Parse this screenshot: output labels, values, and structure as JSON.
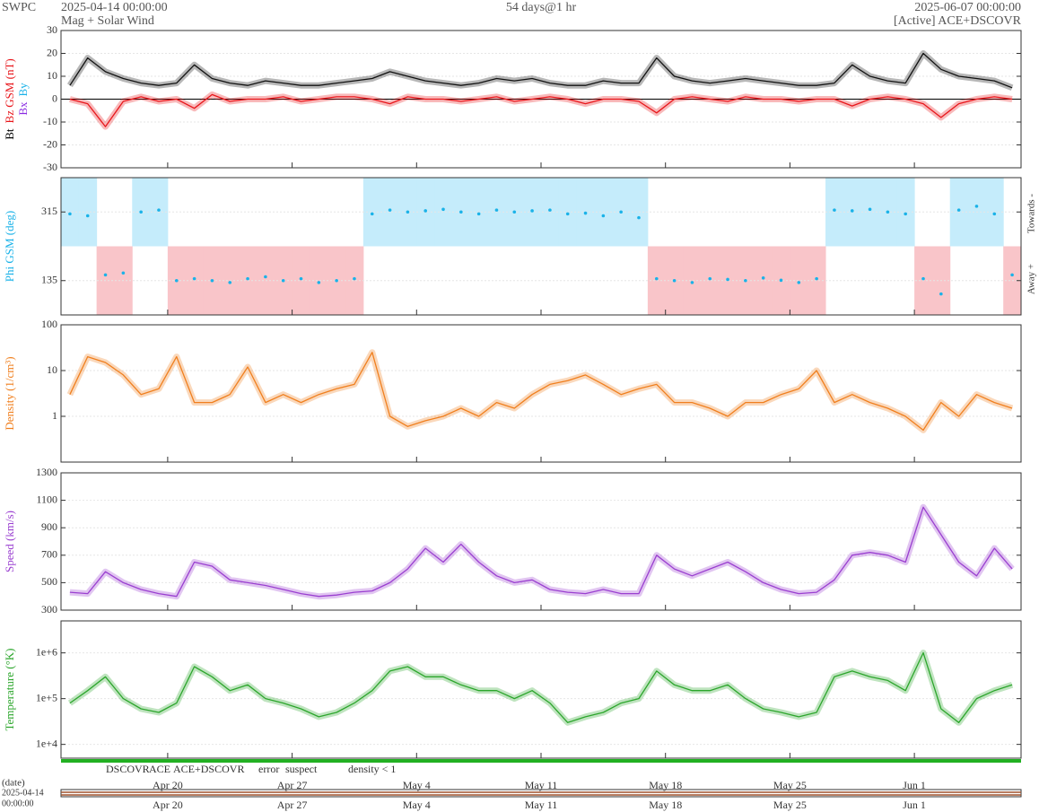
{
  "header": {
    "source": "SWPC",
    "start": "2025-04-14 00:00:00",
    "subtitle": "Mag + Solar Wind",
    "span": "54 days@1 hr",
    "end": "2025-06-07 00:00:00",
    "status": "[Active] ACE+DSCOVR"
  },
  "x_axis": {
    "categories": [
      null,
      null,
      null,
      null,
      null,
      null,
      "Apr 20",
      null,
      null,
      null,
      null,
      null,
      null,
      "Apr 27",
      null,
      null,
      null,
      null,
      null,
      null,
      "May 4",
      null,
      null,
      null,
      null,
      null,
      null,
      "May 11",
      null,
      null,
      null,
      null,
      null,
      null,
      "May 18",
      null,
      null,
      null,
      null,
      null,
      null,
      "May 25",
      null,
      null,
      null,
      null,
      null,
      null,
      "Jun 1",
      null,
      null,
      null,
      null,
      null
    ],
    "date_label": "(date)",
    "date_start": "2025-04-14",
    "time_start": "00:00:00"
  },
  "chart_data": [
    {
      "type": "line",
      "ylabel": [
        {
          "text": "Bt",
          "color": "#000000"
        },
        {
          "text": "Bz GSM (nT)",
          "color": "#e8161b"
        }
      ],
      "ylabel2": [
        {
          "text": "Bx",
          "color": "#8a2be2"
        },
        {
          "text": "By",
          "color": "#1ab2e8"
        }
      ],
      "ylim": [
        -30,
        30
      ],
      "yticks": [
        -30,
        -20,
        -10,
        0,
        10,
        20,
        30
      ],
      "log": false,
      "series": [
        {
          "color": "#111111",
          "values": [
            6,
            18,
            12,
            9,
            7,
            6,
            7,
            15,
            9,
            7,
            6,
            8,
            7,
            6,
            6,
            7,
            8,
            9,
            12,
            10,
            8,
            7,
            6,
            7,
            9,
            8,
            9,
            7,
            6,
            6,
            8,
            7,
            7,
            18,
            10,
            8,
            7,
            8,
            9,
            8,
            7,
            6,
            6,
            7,
            15,
            10,
            8,
            7,
            20,
            13,
            10,
            9,
            8,
            5
          ]
        },
        {
          "color": "#e8161b",
          "values": [
            0,
            -2,
            -12,
            -1,
            1,
            -1,
            0,
            -4,
            2,
            -1,
            0,
            0,
            1,
            -1,
            0,
            1,
            1,
            0,
            -2,
            1,
            0,
            0,
            -1,
            0,
            1,
            -1,
            0,
            1,
            0,
            -2,
            0,
            0,
            -1,
            -6,
            0,
            1,
            0,
            -1,
            1,
            0,
            0,
            -1,
            0,
            0,
            -3,
            0,
            1,
            0,
            -2,
            -8,
            -2,
            0,
            1,
            0
          ]
        }
      ]
    },
    {
      "type": "scatter",
      "ylabel": [
        {
          "text": "Phi GSM (deg)",
          "color": "#1ab2e8"
        }
      ],
      "right_labels": [
        "Towards -",
        "Away +"
      ],
      "sector_colors": [
        "#c5ecfb",
        "#f9c5c9"
      ],
      "ylim": [
        45,
        405
      ],
      "yticks": [
        135,
        315
      ],
      "log": false,
      "series": [
        {
          "color": "#1ab2e8",
          "values": [
            310,
            305,
            150,
            155,
            315,
            320,
            135,
            140,
            135,
            130,
            140,
            145,
            135,
            140,
            130,
            135,
            140,
            310,
            320,
            315,
            318,
            322,
            315,
            310,
            320,
            315,
            318,
            320,
            310,
            312,
            305,
            315,
            300,
            140,
            135,
            130,
            140,
            138,
            135,
            142,
            136,
            130,
            140,
            320,
            318,
            322,
            315,
            310,
            140,
            100,
            320,
            330,
            310,
            150
          ]
        }
      ]
    },
    {
      "type": "line",
      "ylabel": [
        {
          "text": "Density (1/cm³)",
          "color": "#f07f1e"
        }
      ],
      "ylim": [
        0.1,
        100
      ],
      "yticks": [
        1,
        10,
        100
      ],
      "log": true,
      "series": [
        {
          "color": "#f07f1e",
          "values": [
            3,
            20,
            15,
            8,
            3,
            4,
            20,
            2,
            2,
            3,
            12,
            2,
            3,
            2,
            3,
            4,
            5,
            25,
            1,
            0.6,
            0.8,
            1,
            1.5,
            1,
            2,
            1.5,
            3,
            5,
            6,
            8,
            5,
            3,
            4,
            5,
            2,
            2,
            1.5,
            1,
            2,
            2,
            3,
            4,
            10,
            2,
            3,
            2,
            1.5,
            1,
            0.5,
            2,
            1,
            3,
            2,
            1.5
          ]
        }
      ]
    },
    {
      "type": "line",
      "ylabel": [
        {
          "text": "Speed (km/s)",
          "color": "#9a3fd0"
        }
      ],
      "ylim": [
        300,
        1300
      ],
      "yticks": [
        300,
        500,
        700,
        900,
        1100,
        1300
      ],
      "log": false,
      "series": [
        {
          "color": "#9a3fd0",
          "values": [
            430,
            420,
            580,
            500,
            450,
            420,
            400,
            650,
            620,
            520,
            500,
            480,
            450,
            420,
            400,
            410,
            430,
            440,
            500,
            600,
            750,
            650,
            780,
            650,
            550,
            500,
            520,
            450,
            430,
            420,
            450,
            420,
            420,
            700,
            600,
            550,
            600,
            650,
            580,
            500,
            450,
            420,
            430,
            520,
            700,
            720,
            700,
            650,
            1050,
            850,
            650,
            550,
            750,
            600
          ]
        }
      ]
    },
    {
      "type": "line",
      "ylabel": [
        {
          "text": "Temperature (°K)",
          "color": "#2ca62c"
        }
      ],
      "ylim": [
        5000,
        5000000
      ],
      "yticks": [
        {
          "value": 10000,
          "label": "1e+4"
        },
        {
          "value": 100000,
          "label": "1e+5"
        },
        {
          "value": 1000000,
          "label": "1e+6"
        }
      ],
      "log": true,
      "series": [
        {
          "color": "#2ca62c",
          "values": [
            80000,
            150000,
            300000,
            100000,
            60000,
            50000,
            80000,
            500000,
            300000,
            150000,
            200000,
            100000,
            80000,
            60000,
            40000,
            50000,
            80000,
            150000,
            400000,
            500000,
            300000,
            300000,
            200000,
            150000,
            150000,
            100000,
            150000,
            80000,
            30000,
            40000,
            50000,
            80000,
            100000,
            400000,
            200000,
            150000,
            150000,
            200000,
            100000,
            60000,
            50000,
            40000,
            50000,
            300000,
            400000,
            300000,
            250000,
            150000,
            1000000,
            60000,
            30000,
            100000,
            150000,
            200000
          ]
        }
      ]
    }
  ],
  "status_legend": [
    {
      "label": "DSCOVR",
      "color": "#1a1acc"
    },
    {
      "label": "ACE",
      "color": "#22b022"
    },
    {
      "label": "ACE+DSCOVR",
      "color": "#e020c0"
    },
    {
      "label": "error",
      "color": "#e01a1a"
    },
    {
      "label": "suspect",
      "color": "#e8c800"
    },
    {
      "label": "density < 1",
      "color": "#f07f1e"
    }
  ]
}
